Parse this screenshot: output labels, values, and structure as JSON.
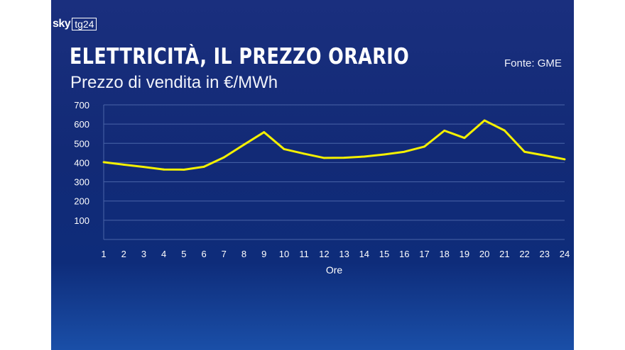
{
  "logo": {
    "sky": "sky",
    "tg": "tg24"
  },
  "header": {
    "title": "ELETTRICITÀ, IL PREZZO ORARIO",
    "subtitle": "Prezzo di vendita in €/MWh",
    "source": "Fonte: GME"
  },
  "colors": {
    "background": "#142c7c",
    "line": "#f4f000",
    "grid": "#4a64a8",
    "text": "#ffffff"
  },
  "chart_data": {
    "type": "line",
    "title": "ELETTRICITÀ, IL PREZZO ORARIO",
    "subtitle": "Prezzo di vendita in €/MWh",
    "xlabel": "Ore",
    "ylabel": "",
    "ylim": [
      0,
      700
    ],
    "yticks": [
      100,
      200,
      300,
      400,
      500,
      600,
      700
    ],
    "grid": true,
    "x": [
      1,
      2,
      3,
      4,
      5,
      6,
      7,
      8,
      9,
      10,
      11,
      12,
      13,
      14,
      15,
      16,
      17,
      18,
      19,
      20,
      21,
      22,
      23,
      24
    ],
    "series": [
      {
        "values": [
          402,
          389,
          377,
          364,
          363,
          378,
          427,
          493,
          558,
          470,
          446,
          424,
          425,
          431,
          442,
          456,
          483,
          566,
          528,
          619,
          567,
          456,
          437,
          417
        ]
      }
    ]
  }
}
